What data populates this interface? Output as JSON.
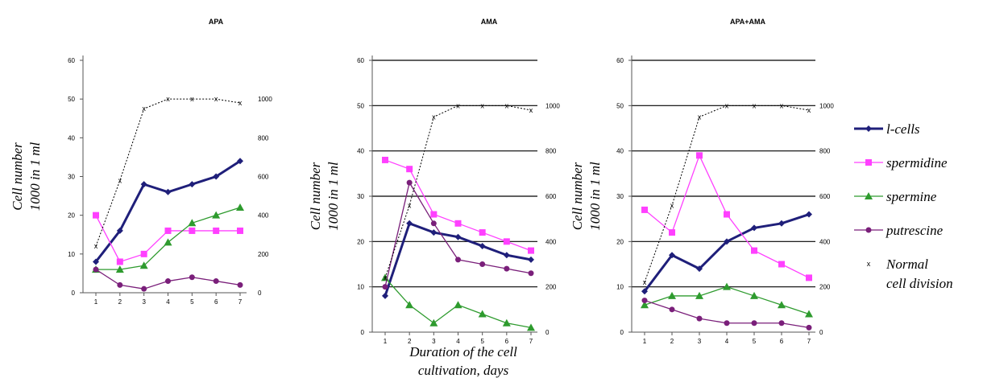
{
  "colors": {
    "l_cells": "#1f1f7a",
    "spermidine": "#ff40ff",
    "spermine": "#2e9b2e",
    "putrescine": "#7a1f7a",
    "normal": "#000000"
  },
  "legend": [
    {
      "key": "l_cells",
      "label": "l-cells",
      "marker": "diamond"
    },
    {
      "key": "spermidine",
      "label": "spermidine",
      "marker": "square"
    },
    {
      "key": "spermine",
      "label": "spermine",
      "marker": "triangle"
    },
    {
      "key": "putrescine",
      "label": "putrescine",
      "marker": "circle"
    },
    {
      "key": "normal",
      "label_line1": "Normal",
      "label_line2": "cell division",
      "marker": "x"
    }
  ],
  "shared_xlabel": {
    "line1": "Duration of the cell",
    "line2": "cultivation, days"
  },
  "chart_data": [
    {
      "type": "line",
      "title": "APA",
      "ylabel": {
        "line1": "Cell number",
        "line2": "1000 in 1 ml"
      },
      "x": [
        1,
        2,
        3,
        4,
        5,
        6,
        7
      ],
      "ylim": [
        0,
        60
      ],
      "yticks": [
        0,
        10,
        20,
        30,
        40,
        50,
        60
      ],
      "y2lim": [
        0,
        1200
      ],
      "y2ticks": [
        0,
        200,
        400,
        600,
        800,
        1000
      ],
      "grid": false,
      "series": [
        {
          "key": "l_cells",
          "name": "l-cells",
          "axis": "left",
          "values": [
            8,
            16,
            28,
            26,
            28,
            30,
            34
          ]
        },
        {
          "key": "spermidine",
          "name": "spermidine",
          "axis": "left",
          "values": [
            20,
            8,
            10,
            16,
            16,
            16,
            16
          ]
        },
        {
          "key": "spermine",
          "name": "spermine",
          "axis": "left",
          "values": [
            6,
            6,
            7,
            13,
            18,
            20,
            22
          ]
        },
        {
          "key": "putrescine",
          "name": "putrescine",
          "axis": "left",
          "values": [
            6,
            2,
            1,
            3,
            4,
            3,
            2
          ]
        },
        {
          "key": "normal",
          "name": "Normal cell division",
          "axis": "right",
          "values": [
            240,
            580,
            950,
            1000,
            1000,
            1000,
            980
          ]
        }
      ]
    },
    {
      "type": "line",
      "title": "AMA",
      "ylabel": {
        "line1": "Cell number",
        "line2": "1000 in 1 ml"
      },
      "x": [
        1,
        2,
        3,
        4,
        5,
        6,
        7
      ],
      "ylim": [
        0,
        60
      ],
      "yticks": [
        0,
        10,
        20,
        30,
        40,
        50,
        60
      ],
      "y2lim": [
        0,
        1200
      ],
      "y2ticks": [
        0,
        200,
        400,
        600,
        800,
        1000
      ],
      "grid": true,
      "series": [
        {
          "key": "l_cells",
          "name": "l-cells",
          "axis": "left",
          "values": [
            8,
            24,
            22,
            21,
            19,
            17,
            16
          ]
        },
        {
          "key": "spermidine",
          "name": "spermidine",
          "axis": "left",
          "values": [
            38,
            36,
            26,
            24,
            22,
            20,
            18
          ]
        },
        {
          "key": "spermine",
          "name": "spermine",
          "axis": "left",
          "values": [
            12,
            6,
            2,
            6,
            4,
            2,
            1
          ]
        },
        {
          "key": "putrescine",
          "name": "putrescine",
          "axis": "left",
          "values": [
            10,
            33,
            24,
            16,
            15,
            14,
            13
          ]
        },
        {
          "key": "normal",
          "name": "Normal cell division",
          "axis": "right",
          "values": [
            240,
            560,
            950,
            1000,
            1000,
            1000,
            980
          ]
        }
      ]
    },
    {
      "type": "line",
      "title": "APA+AMA",
      "ylabel": {
        "line1": "Cell number",
        "line2": "1000 in 1 ml"
      },
      "x": [
        1,
        2,
        3,
        4,
        5,
        6,
        7
      ],
      "ylim": [
        0,
        60
      ],
      "yticks": [
        0,
        10,
        20,
        30,
        40,
        50,
        60
      ],
      "y2lim": [
        0,
        1200
      ],
      "y2ticks": [
        0,
        200,
        400,
        600,
        800,
        1000
      ],
      "grid": true,
      "series": [
        {
          "key": "l_cells",
          "name": "l-cells",
          "axis": "left",
          "values": [
            9,
            17,
            14,
            20,
            23,
            24,
            26
          ]
        },
        {
          "key": "spermidine",
          "name": "spermidine",
          "axis": "left",
          "values": [
            27,
            22,
            39,
            26,
            18,
            15,
            12
          ]
        },
        {
          "key": "spermine",
          "name": "spermine",
          "axis": "left",
          "values": [
            6,
            8,
            8,
            10,
            8,
            6,
            4
          ]
        },
        {
          "key": "putrescine",
          "name": "putrescine",
          "axis": "left",
          "values": [
            7,
            5,
            3,
            2,
            2,
            2,
            1
          ]
        },
        {
          "key": "normal",
          "name": "Normal cell division",
          "axis": "right",
          "values": [
            220,
            560,
            950,
            1000,
            1000,
            1000,
            980
          ]
        }
      ]
    }
  ]
}
